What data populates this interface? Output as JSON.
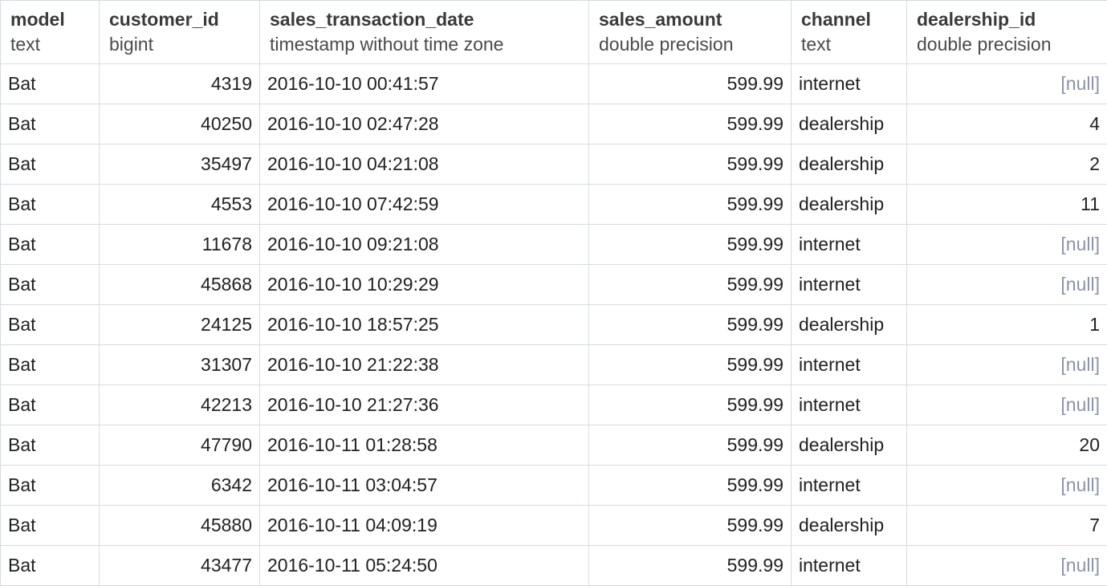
{
  "columns": [
    {
      "name": "model",
      "type": "text"
    },
    {
      "name": "customer_id",
      "type": "bigint"
    },
    {
      "name": "sales_transaction_date",
      "type": "timestamp without time zone"
    },
    {
      "name": "sales_amount",
      "type": "double precision"
    },
    {
      "name": "channel",
      "type": "text"
    },
    {
      "name": "dealership_id",
      "type": "double precision"
    }
  ],
  "rows": [
    {
      "model": "Bat",
      "customer_id": "4319",
      "sales_transaction_date": "2016-10-10 00:41:57",
      "sales_amount": "599.99",
      "channel": "internet",
      "dealership_id": "[null]"
    },
    {
      "model": "Bat",
      "customer_id": "40250",
      "sales_transaction_date": "2016-10-10 02:47:28",
      "sales_amount": "599.99",
      "channel": "dealership",
      "dealership_id": "4"
    },
    {
      "model": "Bat",
      "customer_id": "35497",
      "sales_transaction_date": "2016-10-10 04:21:08",
      "sales_amount": "599.99",
      "channel": "dealership",
      "dealership_id": "2"
    },
    {
      "model": "Bat",
      "customer_id": "4553",
      "sales_transaction_date": "2016-10-10 07:42:59",
      "sales_amount": "599.99",
      "channel": "dealership",
      "dealership_id": "11"
    },
    {
      "model": "Bat",
      "customer_id": "11678",
      "sales_transaction_date": "2016-10-10 09:21:08",
      "sales_amount": "599.99",
      "channel": "internet",
      "dealership_id": "[null]"
    },
    {
      "model": "Bat",
      "customer_id": "45868",
      "sales_transaction_date": "2016-10-10 10:29:29",
      "sales_amount": "599.99",
      "channel": "internet",
      "dealership_id": "[null]"
    },
    {
      "model": "Bat",
      "customer_id": "24125",
      "sales_transaction_date": "2016-10-10 18:57:25",
      "sales_amount": "599.99",
      "channel": "dealership",
      "dealership_id": "1"
    },
    {
      "model": "Bat",
      "customer_id": "31307",
      "sales_transaction_date": "2016-10-10 21:22:38",
      "sales_amount": "599.99",
      "channel": "internet",
      "dealership_id": "[null]"
    },
    {
      "model": "Bat",
      "customer_id": "42213",
      "sales_transaction_date": "2016-10-10 21:27:36",
      "sales_amount": "599.99",
      "channel": "internet",
      "dealership_id": "[null]"
    },
    {
      "model": "Bat",
      "customer_id": "47790",
      "sales_transaction_date": "2016-10-11 01:28:58",
      "sales_amount": "599.99",
      "channel": "dealership",
      "dealership_id": "20"
    },
    {
      "model": "Bat",
      "customer_id": "6342",
      "sales_transaction_date": "2016-10-11 03:04:57",
      "sales_amount": "599.99",
      "channel": "internet",
      "dealership_id": "[null]"
    },
    {
      "model": "Bat",
      "customer_id": "45880",
      "sales_transaction_date": "2016-10-11 04:09:19",
      "sales_amount": "599.99",
      "channel": "dealership",
      "dealership_id": "7"
    },
    {
      "model": "Bat",
      "customer_id": "43477",
      "sales_transaction_date": "2016-10-11 05:24:50",
      "sales_amount": "599.99",
      "channel": "internet",
      "dealership_id": "[null]"
    }
  ],
  "colors": {
    "null_text": "#8a93a8",
    "grid_line": "#d6dbe3",
    "header_text": "#3a3a3a",
    "cell_text": "#212121"
  }
}
